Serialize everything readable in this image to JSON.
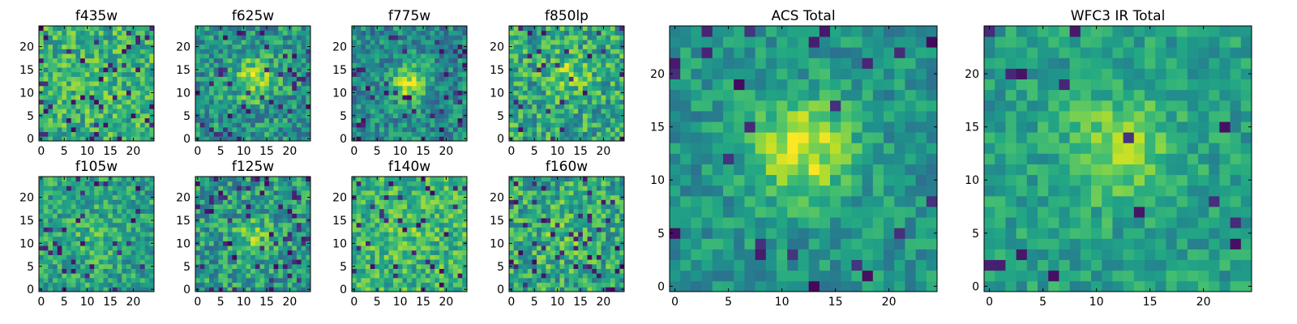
{
  "chart_data": [
    {
      "type": "heatmap",
      "title": "f435w",
      "xticks": [
        "0",
        "5",
        "10",
        "15",
        "20"
      ],
      "yticks": [
        "0",
        "5",
        "10",
        "15",
        "20"
      ],
      "xlim": [
        0,
        25
      ],
      "ylim": [
        0,
        25
      ],
      "grid": false,
      "colormap": "viridis"
    },
    {
      "type": "heatmap",
      "title": "f625w",
      "xticks": [
        "0",
        "5",
        "10",
        "15",
        "20"
      ],
      "yticks": [
        "0",
        "5",
        "10",
        "15",
        "20"
      ],
      "xlim": [
        0,
        25
      ],
      "ylim": [
        0,
        25
      ],
      "grid": false,
      "colormap": "viridis"
    },
    {
      "type": "heatmap",
      "title": "f775w",
      "xticks": [
        "0",
        "5",
        "10",
        "15",
        "20"
      ],
      "yticks": [
        "0",
        "5",
        "10",
        "15",
        "20"
      ],
      "xlim": [
        0,
        25
      ],
      "ylim": [
        0,
        25
      ],
      "grid": false,
      "colormap": "viridis"
    },
    {
      "type": "heatmap",
      "title": "f850lp",
      "xticks": [
        "0",
        "5",
        "10",
        "15",
        "20"
      ],
      "yticks": [
        "0",
        "5",
        "10",
        "15",
        "20"
      ],
      "xlim": [
        0,
        25
      ],
      "ylim": [
        0,
        25
      ],
      "grid": false,
      "colormap": "viridis"
    },
    {
      "type": "heatmap",
      "title": "f105w",
      "xticks": [
        "0",
        "5",
        "10",
        "15",
        "20"
      ],
      "yticks": [
        "0",
        "5",
        "10",
        "15",
        "20"
      ],
      "xlim": [
        0,
        25
      ],
      "ylim": [
        0,
        25
      ],
      "grid": false,
      "colormap": "viridis"
    },
    {
      "type": "heatmap",
      "title": "f125w",
      "xticks": [
        "0",
        "5",
        "10",
        "15",
        "20"
      ],
      "yticks": [
        "0",
        "5",
        "10",
        "15",
        "20"
      ],
      "xlim": [
        0,
        25
      ],
      "ylim": [
        0,
        25
      ],
      "grid": false,
      "colormap": "viridis"
    },
    {
      "type": "heatmap",
      "title": "f140w",
      "xticks": [
        "0",
        "5",
        "10",
        "15",
        "20"
      ],
      "yticks": [
        "0",
        "5",
        "10",
        "15",
        "20"
      ],
      "xlim": [
        0,
        25
      ],
      "ylim": [
        0,
        25
      ],
      "grid": false,
      "colormap": "viridis"
    },
    {
      "type": "heatmap",
      "title": "f160w",
      "xticks": [
        "0",
        "5",
        "10",
        "15",
        "20"
      ],
      "yticks": [
        "0",
        "5",
        "10",
        "15",
        "20"
      ],
      "xlim": [
        0,
        25
      ],
      "ylim": [
        0,
        25
      ],
      "grid": false,
      "colormap": "viridis"
    },
    {
      "type": "heatmap",
      "title": "ACS Total",
      "xticks": [
        "0",
        "5",
        "10",
        "15",
        "20"
      ],
      "yticks": [
        "0",
        "5",
        "10",
        "15",
        "20"
      ],
      "xlim": [
        0,
        25
      ],
      "ylim": [
        0,
        25
      ],
      "grid": false,
      "colormap": "viridis"
    },
    {
      "type": "heatmap",
      "title": "WFC3 IR Total",
      "xticks": [
        "0",
        "5",
        "10",
        "15",
        "20"
      ],
      "yticks": [
        "0",
        "5",
        "10",
        "15",
        "20"
      ],
      "xlim": [
        0,
        25
      ],
      "ylim": [
        0,
        25
      ],
      "grid": false,
      "colormap": "viridis"
    }
  ]
}
